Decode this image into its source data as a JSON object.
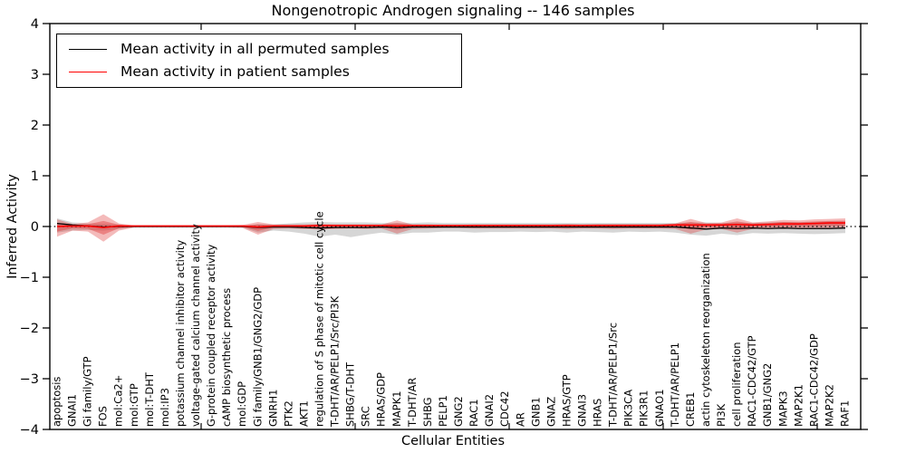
{
  "chart_data": {
    "type": "line",
    "title": "Nongenotropic Androgen signaling -- 146 samples",
    "xlabel": "Cellular Entities",
    "ylabel": "Inferred Activity",
    "ylim": [
      -4,
      4
    ],
    "yticks": [
      4,
      3,
      2,
      1,
      0,
      -1,
      -2,
      -3,
      -4
    ],
    "grid": false,
    "zero_line": {
      "style": "dotted",
      "color": "#000000",
      "y": 0
    },
    "legend": {
      "position": "upper-left",
      "entries": [
        {
          "label": "Mean activity in all permuted samples",
          "color": "#000000"
        },
        {
          "label": "Mean activity in patient samples",
          "color": "#ff0000"
        }
      ]
    },
    "categories": [
      "apoptosis",
      "GNAI1",
      "Gi family/GTP",
      "FOS",
      "mol:Ca2+",
      "mol:GTP",
      "mol:T-DHT",
      "mol:IP3",
      "potassium channel inhibitor activity",
      "voltage-gated calcium channel activity",
      "G-protein coupled receptor activity",
      "cAMP biosynthetic process",
      "mol:GDP",
      "Gi family/GNB1/GNG2/GDP",
      "GNRH1",
      "PTK2",
      "AKT1",
      "regulation of S phase of mitotic cell cycle",
      "T-DHT/AR/PELP1/Src/PI3K",
      "SHBG/T-DHT",
      "SRC",
      "HRAS/GDP",
      "MAPK1",
      "T-DHT/AR",
      "SHBG",
      "PELP1",
      "GNG2",
      "RAC1",
      "GNAI2",
      "CDC42",
      "AR",
      "GNB1",
      "GNAZ",
      "HRAS/GTP",
      "GNAI3",
      "HRAS",
      "T-DHT/AR/PELP1/Src",
      "PIK3CA",
      "PIK3R1",
      "GNAO1",
      "T-DHT/AR/PELP1",
      "CREB1",
      "actin cytoskeleton reorganization",
      "PI3K",
      "cell proliferation",
      "RAC1-CDC42/GTP",
      "GNB1/GNG2",
      "MAPK3",
      "MAP2K1",
      "RAC1-CDC42/GDP",
      "MAP2K2",
      "RAF1"
    ],
    "series": [
      {
        "name": "Mean activity in all permuted samples",
        "line_color": "#000000",
        "band_color": "#808080",
        "values": [
          0.06,
          0.03,
          0.01,
          -0.01,
          0.0,
          0.0,
          0.0,
          0.0,
          0.0,
          0.0,
          0.0,
          0.0,
          0.0,
          -0.02,
          -0.01,
          -0.01,
          -0.02,
          -0.03,
          -0.02,
          -0.02,
          -0.02,
          -0.01,
          -0.02,
          -0.01,
          -0.01,
          -0.01,
          -0.01,
          -0.01,
          -0.01,
          -0.01,
          -0.01,
          -0.01,
          -0.01,
          -0.01,
          -0.01,
          -0.01,
          -0.01,
          -0.01,
          -0.01,
          -0.01,
          -0.01,
          -0.03,
          -0.05,
          -0.03,
          -0.04,
          -0.03,
          -0.04,
          -0.03,
          -0.04,
          -0.04,
          -0.04,
          -0.03
        ],
        "band_upper": [
          0.16,
          0.08,
          0.06,
          0.05,
          0.04,
          0.01,
          0.01,
          0.01,
          0.01,
          0.01,
          0.01,
          0.01,
          0.01,
          0.05,
          0.04,
          0.06,
          0.08,
          0.09,
          0.08,
          0.08,
          0.08,
          0.07,
          0.07,
          0.07,
          0.08,
          0.07,
          0.07,
          0.07,
          0.07,
          0.07,
          0.07,
          0.07,
          0.07,
          0.07,
          0.07,
          0.07,
          0.07,
          0.07,
          0.07,
          0.07,
          0.07,
          0.08,
          0.08,
          0.07,
          0.08,
          0.07,
          0.08,
          0.09,
          0.08,
          0.09,
          0.1,
          0.1
        ],
        "band_lower": [
          -0.12,
          -0.08,
          -0.07,
          -0.08,
          -0.05,
          -0.02,
          -0.02,
          -0.02,
          -0.02,
          -0.02,
          -0.02,
          -0.02,
          -0.02,
          -0.12,
          -0.08,
          -0.1,
          -0.14,
          -0.2,
          -0.16,
          -0.21,
          -0.16,
          -0.12,
          -0.16,
          -0.12,
          -0.12,
          -0.1,
          -0.1,
          -0.12,
          -0.11,
          -0.11,
          -0.1,
          -0.11,
          -0.1,
          -0.12,
          -0.1,
          -0.11,
          -0.12,
          -0.1,
          -0.11,
          -0.1,
          -0.12,
          -0.16,
          -0.18,
          -0.14,
          -0.17,
          -0.13,
          -0.14,
          -0.13,
          -0.14,
          -0.15,
          -0.14,
          -0.13
        ]
      },
      {
        "name": "Mean activity in patient samples",
        "line_color": "#ff0000",
        "band_color": "#dc2828",
        "values": [
          0.0,
          0.01,
          0.01,
          -0.02,
          0.01,
          0.01,
          0.01,
          0.01,
          0.01,
          0.01,
          0.01,
          0.01,
          0.01,
          -0.01,
          0.01,
          0.01,
          0.01,
          0.02,
          0.02,
          0.02,
          0.02,
          0.02,
          0.01,
          0.02,
          0.02,
          0.02,
          0.02,
          0.02,
          0.02,
          0.02,
          0.02,
          0.02,
          0.02,
          0.02,
          0.02,
          0.02,
          0.02,
          0.02,
          0.02,
          0.02,
          0.03,
          0.03,
          0.03,
          0.03,
          0.04,
          0.03,
          0.04,
          0.05,
          0.05,
          0.06,
          0.07,
          0.07
        ],
        "band_upper": [
          0.14,
          0.05,
          0.08,
          0.24,
          0.06,
          0.02,
          0.02,
          0.02,
          0.02,
          0.02,
          0.02,
          0.02,
          0.03,
          0.09,
          0.04,
          0.04,
          0.04,
          0.05,
          0.04,
          0.04,
          0.04,
          0.04,
          0.12,
          0.04,
          0.04,
          0.03,
          0.03,
          0.04,
          0.04,
          0.04,
          0.04,
          0.04,
          0.04,
          0.05,
          0.04,
          0.05,
          0.05,
          0.05,
          0.05,
          0.05,
          0.06,
          0.15,
          0.07,
          0.08,
          0.16,
          0.08,
          0.1,
          0.13,
          0.12,
          0.14,
          0.15,
          0.16
        ],
        "band_lower": [
          -0.2,
          -0.08,
          -0.1,
          -0.3,
          -0.08,
          -0.02,
          -0.02,
          -0.02,
          -0.02,
          -0.02,
          -0.02,
          -0.02,
          -0.03,
          -0.16,
          -0.05,
          -0.04,
          -0.05,
          -0.06,
          -0.05,
          -0.04,
          -0.05,
          -0.04,
          -0.14,
          -0.05,
          -0.04,
          -0.03,
          -0.03,
          -0.04,
          -0.04,
          -0.04,
          -0.04,
          -0.04,
          -0.04,
          -0.05,
          -0.04,
          -0.04,
          -0.05,
          -0.04,
          -0.04,
          -0.04,
          -0.05,
          -0.14,
          -0.06,
          -0.05,
          -0.12,
          -0.05,
          -0.04,
          -0.05,
          -0.04,
          -0.05,
          -0.04,
          -0.04
        ]
      }
    ]
  }
}
